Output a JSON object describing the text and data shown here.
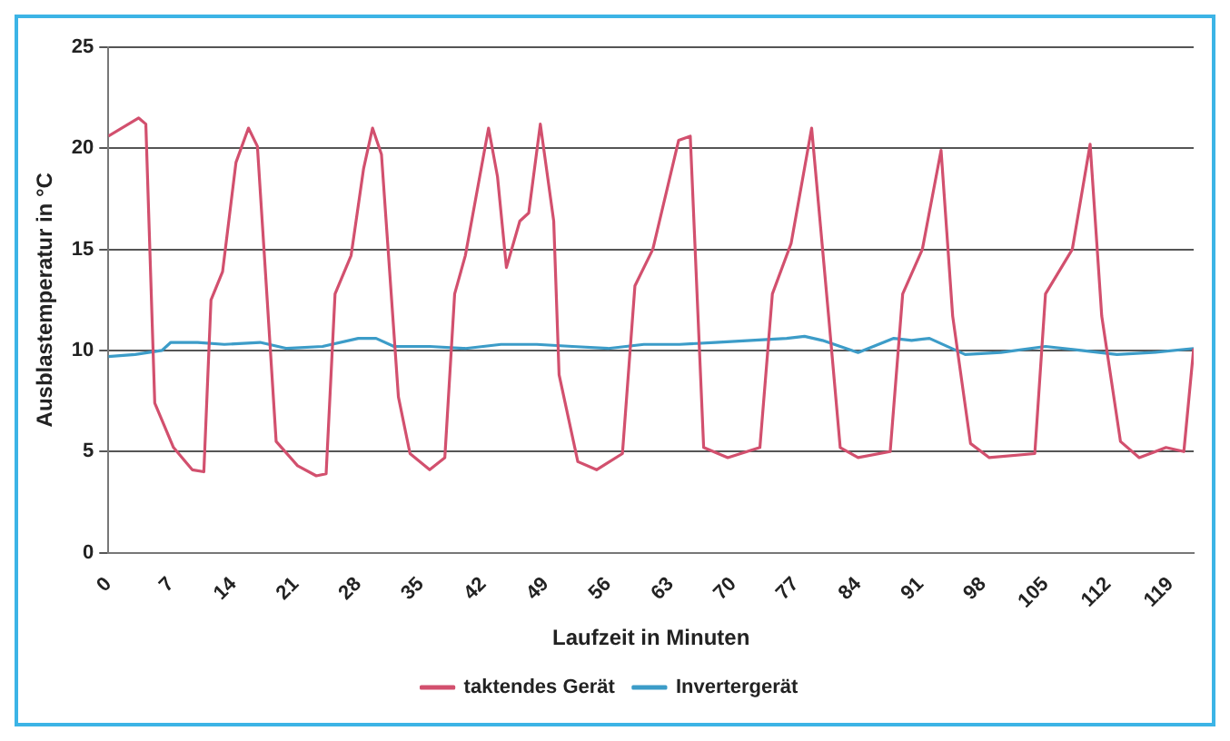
{
  "chart_data": {
    "type": "line",
    "xlabel": "Laufzeit in Minuten",
    "ylabel": "Ausblastemperatur in °C",
    "xlim": [
      0,
      121.6
    ],
    "xticks": [
      0,
      7,
      14,
      21,
      28,
      35,
      42,
      49,
      56,
      63,
      70,
      77,
      84,
      91,
      98,
      105,
      112,
      119
    ],
    "ylim": [
      0,
      25
    ],
    "yticks": [
      0,
      5,
      10,
      15,
      20,
      25
    ],
    "grid": "y",
    "legend": "bottom",
    "marker": "none",
    "line_style": "solid",
    "series": [
      {
        "name": "taktendes Gerät",
        "color": "#d2506e",
        "x": [
          0,
          3.4,
          4.2,
          5.2,
          7.3,
          9.4,
          10.7,
          11.5,
          12.8,
          14.3,
          15.7,
          16.7,
          17.8,
          18.8,
          21.2,
          23.3,
          24.4,
          25.4,
          27.2,
          28.6,
          29.6,
          30.6,
          32.5,
          33.8,
          36,
          37.7,
          38.8,
          40,
          42.6,
          43.6,
          44.6,
          46.1,
          47.1,
          48.4,
          49.9,
          50.5,
          52.6,
          54.7,
          57.6,
          59,
          61,
          63.9,
          65.2,
          66.7,
          69.4,
          73,
          74.4,
          76.5,
          78.8,
          80.7,
          82,
          84,
          87.6,
          89,
          91.2,
          93.3,
          94.6,
          96.6,
          98.7,
          103.8,
          105,
          108,
          110,
          111.3,
          113.4,
          115.5,
          118.5,
          120.5,
          121.6
        ],
        "values": [
          20.6,
          21.5,
          21.2,
          7.4,
          5.2,
          4.1,
          4,
          12.5,
          13.9,
          19.3,
          21,
          20.1,
          12.5,
          5.5,
          4.3,
          3.8,
          3.9,
          12.8,
          14.7,
          19,
          21,
          19.7,
          7.7,
          4.9,
          4.1,
          4.7,
          12.8,
          14.7,
          21,
          18.6,
          14.1,
          16.4,
          16.8,
          21.2,
          16.4,
          8.8,
          4.5,
          4.1,
          4.9,
          13.2,
          15,
          20.4,
          20.6,
          5.2,
          4.7,
          5.2,
          12.8,
          15.3,
          21,
          11.7,
          5.2,
          4.7,
          5,
          12.8,
          15,
          19.9,
          11.7,
          5.4,
          4.7,
          4.9,
          12.8,
          15,
          20.2,
          11.7,
          5.5,
          4.7,
          5.2,
          5,
          10.1
        ]
      },
      {
        "name": "Invertergerät",
        "color": "#3c9cc8",
        "x": [
          0,
          3,
          6,
          7,
          10,
          13,
          17,
          20,
          24,
          28,
          30,
          32,
          36,
          40,
          44,
          48,
          52,
          56,
          60,
          64,
          68,
          72,
          76,
          78,
          80,
          84,
          88,
          90,
          92,
          96,
          100,
          105,
          109,
          113,
          117,
          121.6
        ],
        "values": [
          9.7,
          9.8,
          10,
          10.4,
          10.4,
          10.3,
          10.4,
          10.1,
          10.2,
          10.6,
          10.6,
          10.2,
          10.2,
          10.1,
          10.3,
          10.3,
          10.2,
          10.1,
          10.3,
          10.3,
          10.4,
          10.5,
          10.6,
          10.7,
          10.5,
          9.9,
          10.6,
          10.5,
          10.6,
          9.8,
          9.9,
          10.2,
          10,
          9.8,
          9.9,
          10.1
        ]
      }
    ]
  }
}
